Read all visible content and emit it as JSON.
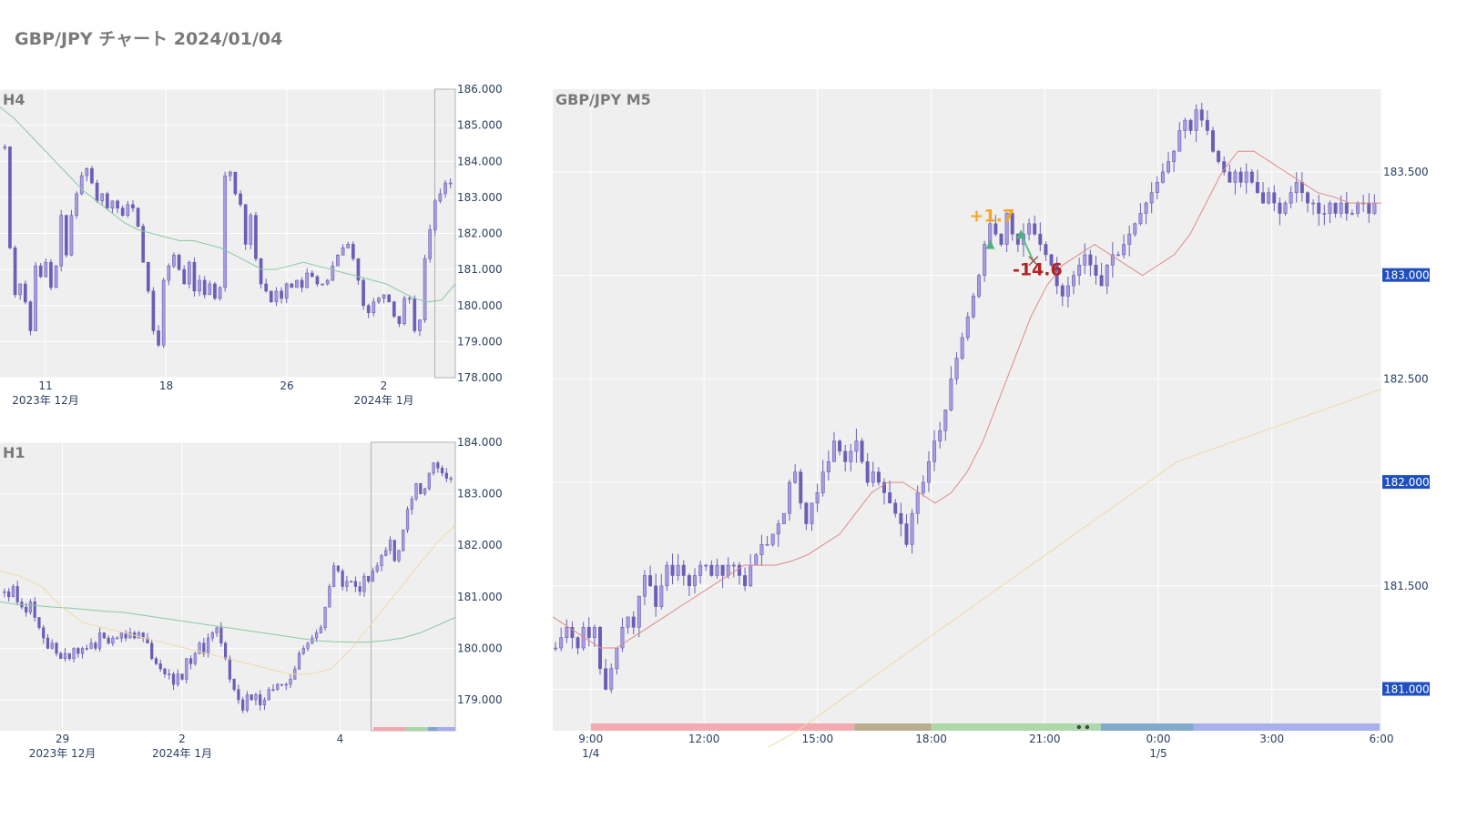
{
  "title": "GBP/JPY チャート 2024/01/04",
  "colors": {
    "plot_bg": "#efefef",
    "grid": "#ffffff",
    "candle": "#6a5fb5",
    "candle_fill": "#a89de0",
    "ma_green": "#8cc8a4",
    "ma_red": "#e08a8a",
    "ma_yellow": "#f0d8a8",
    "tick_text": "#2a3f5f",
    "panel_label": "#7a7a7a",
    "price_badge": "#1f4fbf",
    "profit": "#f5a623",
    "loss": "#b22222",
    "session_colors": [
      "#f2a7ad",
      "#b5a987",
      "#a9d6a4",
      "#7aa6c9",
      "#a3acec"
    ]
  },
  "chart_data": [
    {
      "id": "h4",
      "type": "candlestick",
      "title": "H4",
      "ylim": [
        178.0,
        186.0
      ],
      "yticks": [
        "178.000",
        "179.000",
        "180.000",
        "181.000",
        "182.000",
        "183.000",
        "184.000",
        "185.000",
        "186.000"
      ],
      "xticks": [
        {
          "pos": 0.1,
          "label": "11",
          "sub": "2023年 12月"
        },
        {
          "pos": 0.365,
          "label": "18",
          "sub": ""
        },
        {
          "pos": 0.63,
          "label": "26",
          "sub": ""
        },
        {
          "pos": 0.843,
          "label": "2",
          "sub": "2024年 1月"
        }
      ],
      "closes": [
        184.4,
        181.6,
        180.3,
        180.6,
        180.1,
        179.3,
        181.1,
        180.8,
        181.2,
        180.5,
        181.1,
        182.5,
        181.4,
        182.5,
        183.1,
        183.6,
        183.8,
        183.4,
        182.9,
        183.1,
        182.7,
        182.9,
        182.7,
        182.5,
        182.8,
        182.7,
        182.2,
        181.2,
        180.4,
        179.3,
        178.9,
        180.7,
        181.1,
        181.4,
        181.0,
        180.6,
        181.2,
        180.4,
        180.7,
        180.3,
        180.6,
        180.2,
        180.5,
        183.6,
        183.7,
        183.1,
        182.8,
        181.7,
        182.5,
        181.3,
        180.6,
        180.4,
        180.1,
        180.4,
        180.2,
        180.6,
        180.5,
        180.7,
        180.5,
        180.9,
        180.8,
        180.6,
        180.6,
        180.7,
        181.1,
        181.4,
        181.6,
        181.7,
        181.3,
        180.7,
        180.0,
        179.8,
        180.1,
        180.2,
        180.3,
        180.1,
        179.7,
        179.5,
        180.2,
        180.2,
        179.3,
        179.6,
        181.3,
        182.1,
        182.9,
        183.1,
        183.4,
        183.4
      ],
      "ma_green": [
        185.5,
        185.2,
        184.8,
        184.4,
        184.0,
        183.6,
        183.2,
        182.9,
        182.6,
        182.3,
        182.1,
        182.0,
        181.9,
        181.8,
        181.8,
        181.7,
        181.6,
        181.4,
        181.2,
        181.0,
        181.0,
        181.1,
        181.2,
        181.1,
        181.0,
        180.9,
        180.8,
        180.7,
        180.6,
        180.4,
        180.2,
        180.1,
        180.15,
        180.6
      ],
      "ma_green_start": 0.0,
      "highlight": {
        "from": 0.955,
        "to": 1.0
      }
    },
    {
      "id": "h1",
      "type": "candlestick",
      "title": "H1",
      "ylim": [
        178.4,
        184.0
      ],
      "yticks": [
        "179.000",
        "180.000",
        "181.000",
        "182.000",
        "183.000",
        "184.000"
      ],
      "xticks": [
        {
          "pos": 0.137,
          "label": "29",
          "sub": "2023年 12月"
        },
        {
          "pos": 0.4,
          "label": "2",
          "sub": "2024年 1月"
        },
        {
          "pos": 0.747,
          "label": "4",
          "sub": ""
        }
      ],
      "closes": [
        181.1,
        181.0,
        181.2,
        180.9,
        180.8,
        180.7,
        180.9,
        180.6,
        180.4,
        180.2,
        180.0,
        180.1,
        179.9,
        179.8,
        179.9,
        179.8,
        180.0,
        179.9,
        180.0,
        180.0,
        180.1,
        180.0,
        180.3,
        180.2,
        180.1,
        180.2,
        180.2,
        180.3,
        180.2,
        180.3,
        180.2,
        180.3,
        180.2,
        180.1,
        179.8,
        179.7,
        179.6,
        179.5,
        179.5,
        179.3,
        179.5,
        179.4,
        179.8,
        179.7,
        179.9,
        180.1,
        179.9,
        180.2,
        180.3,
        180.4,
        180.1,
        179.8,
        179.4,
        179.2,
        179.0,
        178.8,
        179.1,
        179.0,
        179.1,
        178.9,
        179.0,
        179.2,
        179.2,
        179.3,
        179.3,
        179.3,
        179.4,
        179.6,
        179.9,
        180.0,
        180.1,
        180.2,
        180.3,
        180.4,
        180.8,
        181.2,
        181.6,
        181.5,
        181.2,
        181.3,
        181.3,
        181.2,
        181.1,
        181.4,
        181.3,
        181.5,
        181.6,
        181.8,
        181.9,
        182.1,
        181.7,
        181.9,
        182.3,
        182.7,
        182.9,
        183.2,
        183.0,
        183.1,
        183.4,
        183.6,
        183.5,
        183.4,
        183.3,
        183.3
      ],
      "ma_green": [
        180.9,
        180.85,
        180.83,
        180.8,
        180.78,
        180.75,
        180.72,
        180.7,
        180.65,
        180.6,
        180.55,
        180.5,
        180.45,
        180.4,
        180.35,
        180.3,
        180.25,
        180.2,
        180.15,
        180.13,
        180.12,
        180.12,
        180.15,
        180.2,
        180.3,
        180.45,
        180.6
      ],
      "ma_green_start": 0.0,
      "ma_yellow": [
        181.5,
        181.4,
        181.2,
        180.8,
        180.5,
        180.4,
        180.3,
        180.2,
        180.1,
        180.0,
        179.9,
        179.8,
        179.7,
        179.6,
        179.5,
        179.5,
        179.6,
        180.0,
        180.5,
        181.0,
        181.5,
        182.0,
        182.4
      ],
      "ma_yellow_start": 0.0,
      "highlight": {
        "from": 0.815,
        "to": 1.0
      }
    },
    {
      "id": "m5",
      "type": "candlestick",
      "title": "GBP/JPY M5",
      "ylim": [
        180.8,
        183.9
      ],
      "yticks": [
        "181.000",
        "181.500",
        "182.000",
        "182.500",
        "183.000",
        "183.500"
      ],
      "badges": [
        "181.000",
        "182.000",
        "183.000"
      ],
      "xticks": [
        {
          "pos": 0.0459,
          "label": "9:00",
          "sub": "1/4"
        },
        {
          "pos": 0.1826,
          "label": "12:00",
          "sub": ""
        },
        {
          "pos": 0.3196,
          "label": "15:00",
          "sub": ""
        },
        {
          "pos": 0.4567,
          "label": "18:00",
          "sub": ""
        },
        {
          "pos": 0.5937,
          "label": "21:00",
          "sub": ""
        },
        {
          "pos": 0.7308,
          "label": "0:00",
          "sub": "1/5"
        },
        {
          "pos": 0.8678,
          "label": "3:00",
          "sub": ""
        },
        {
          "pos": 1.0,
          "label": "6:00",
          "sub": ""
        }
      ],
      "closes": [
        181.2,
        181.25,
        181.3,
        181.25,
        181.2,
        181.3,
        181.25,
        181.3,
        181.1,
        181.0,
        181.1,
        181.2,
        181.3,
        181.35,
        181.3,
        181.45,
        181.55,
        181.5,
        181.4,
        181.5,
        181.6,
        181.55,
        181.6,
        181.55,
        181.5,
        181.55,
        181.6,
        181.6,
        181.55,
        181.6,
        181.55,
        181.6,
        181.6,
        181.55,
        181.5,
        181.6,
        181.65,
        181.7,
        181.7,
        181.75,
        181.8,
        181.85,
        182.0,
        182.05,
        181.9,
        181.8,
        181.9,
        181.95,
        182.05,
        182.1,
        182.2,
        182.15,
        182.1,
        182.15,
        182.2,
        182.1,
        182.0,
        182.05,
        182.0,
        181.95,
        181.9,
        181.85,
        181.8,
        181.7,
        181.85,
        181.95,
        182.0,
        182.1,
        182.2,
        182.25,
        182.35,
        182.5,
        182.6,
        182.7,
        182.8,
        182.9,
        183.0,
        183.15,
        183.25,
        183.2,
        183.15,
        183.3,
        183.2,
        183.15,
        183.2,
        183.25,
        183.2,
        183.15,
        183.1,
        183.05,
        182.95,
        182.9,
        182.95,
        183.0,
        183.05,
        183.1,
        183.05,
        183.0,
        182.95,
        183.05,
        183.1,
        183.1,
        183.15,
        183.2,
        183.25,
        183.3,
        183.35,
        183.4,
        183.45,
        183.5,
        183.55,
        183.6,
        183.7,
        183.75,
        183.7,
        183.8,
        183.75,
        183.7,
        183.6,
        183.55,
        183.5,
        183.45,
        183.5,
        183.45,
        183.5,
        183.45,
        183.4,
        183.35,
        183.4,
        183.35,
        183.3,
        183.35,
        183.4,
        183.45,
        183.4,
        183.35,
        183.35,
        183.3,
        183.3,
        183.35,
        183.3,
        183.35,
        183.3,
        183.3,
        183.35,
        183.35,
        183.3,
        183.35
      ],
      "ma_red": [
        181.35,
        181.3,
        181.25,
        181.2,
        181.2,
        181.25,
        181.3,
        181.35,
        181.4,
        181.45,
        181.5,
        181.55,
        181.6,
        181.6,
        181.6,
        181.62,
        181.65,
        181.7,
        181.75,
        181.85,
        181.95,
        182.0,
        182.0,
        181.95,
        181.9,
        181.95,
        182.05,
        182.2,
        182.4,
        182.6,
        182.8,
        182.95,
        183.05,
        183.1,
        183.15,
        183.1,
        183.05,
        183.0,
        183.05,
        183.1,
        183.2,
        183.35,
        183.5,
        183.6,
        183.6,
        183.55,
        183.5,
        183.45,
        183.4,
        183.38,
        183.35,
        183.35,
        183.35
      ],
      "ma_yellow": [
        180.72,
        180.8,
        180.9,
        181.0,
        181.1,
        181.2,
        181.3,
        181.4,
        181.5,
        181.6,
        181.7,
        181.8,
        181.9,
        182.0,
        182.1,
        182.15,
        182.2,
        182.25,
        182.3,
        182.35,
        182.4,
        182.45
      ],
      "ma_yellow_start": 0.26,
      "sessions": [
        {
          "from": 0.0459,
          "to": 0.364
        },
        {
          "from": 0.364,
          "to": 0.4567
        },
        {
          "from": 0.4567,
          "to": 0.6614
        },
        {
          "from": 0.6614,
          "to": 0.7735
        },
        {
          "from": 0.7735,
          "to": 0.998
        }
      ],
      "annotations": [
        {
          "text": "+1.7",
          "x": 0.53,
          "y": 183.26,
          "kind": "profit"
        },
        {
          "text": "-14.6",
          "x": 0.585,
          "y": 183.0,
          "kind": "loss"
        }
      ],
      "trades": [
        {
          "x": 0.528,
          "y": 183.15,
          "kind": "entry-up"
        },
        {
          "x": 0.565,
          "y": 183.2,
          "kind": "entry-up"
        },
        {
          "x": 0.58,
          "y": 183.07,
          "kind": "exit-x"
        }
      ]
    }
  ]
}
